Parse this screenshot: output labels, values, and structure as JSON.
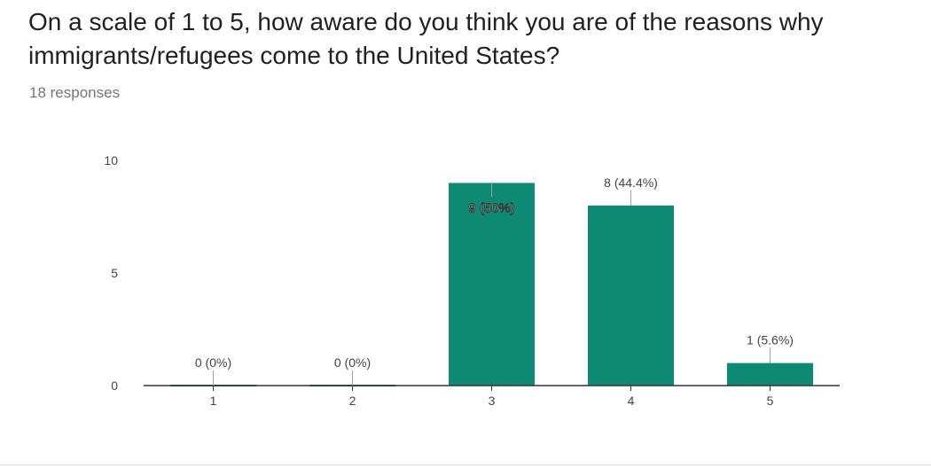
{
  "question": {
    "title": "On a scale of 1 to 5, how aware do you think you are of the reasons why immigrants/refugees come to the United States?",
    "responses": "18 responses"
  },
  "colors": {
    "bar": "#0e8a74",
    "axis": "#333333",
    "leader": "#9e9e9e"
  },
  "chart_data": {
    "type": "bar",
    "categories": [
      "1",
      "2",
      "3",
      "4",
      "5"
    ],
    "values": [
      0,
      0,
      9,
      8,
      1
    ],
    "data_labels": [
      "0 (0%)",
      "0 (0%)",
      "9 (50%)",
      "8 (44.4%)",
      "1 (5.6%)"
    ],
    "yticks": [
      "0",
      "5",
      "10"
    ],
    "ylim": [
      0,
      10
    ],
    "title": "",
    "xlabel": "",
    "ylabel": "",
    "grid": false
  }
}
